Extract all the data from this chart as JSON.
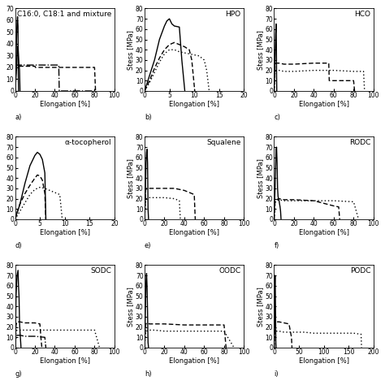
{
  "panels": [
    {
      "label": "a)",
      "title": "C16:0, C18:1 and mixture",
      "xlabel": "Elongation [%]",
      "ylabel": "",
      "xlim": [
        0,
        100
      ],
      "ylim": [
        0,
        70
      ],
      "xticks": [
        0,
        20,
        40,
        60,
        80,
        100
      ],
      "yticks": [
        0,
        10,
        20,
        30,
        40,
        50,
        60,
        70
      ],
      "curves": [
        {
          "style": "solid",
          "x": [
            0,
            0.5,
            1,
            1.5,
            2,
            2.5,
            3,
            3.2,
            3.5
          ],
          "y": [
            0,
            10,
            25,
            45,
            58,
            63,
            55,
            20,
            0
          ]
        },
        {
          "style": "solid",
          "x": [
            0,
            0.5,
            1,
            1.5,
            2,
            2.5,
            3,
            3.5,
            4,
            4.5,
            5
          ],
          "y": [
            0,
            5,
            12,
            20,
            28,
            35,
            38,
            30,
            22,
            18,
            0
          ]
        },
        {
          "style": "dashed",
          "x": [
            0,
            1,
            2,
            5,
            10,
            20,
            20.5,
            40,
            41,
            80,
            81
          ],
          "y": [
            0,
            20,
            21,
            21,
            21,
            21,
            20,
            20,
            20,
            20,
            0
          ]
        },
        {
          "style": "dashdot",
          "x": [
            0,
            1,
            2,
            5,
            10,
            44,
            44.5,
            80,
            81
          ],
          "y": [
            0,
            21,
            22,
            22,
            22,
            22,
            0,
            0,
            0
          ]
        }
      ]
    },
    {
      "label": "b)",
      "title": "HPO",
      "xlabel": "Elongation [%]",
      "ylabel": "Stess [MPa]",
      "xlim": [
        0,
        20
      ],
      "ylim": [
        0,
        80
      ],
      "xticks": [
        0,
        5,
        10,
        15,
        20
      ],
      "yticks": [
        0,
        10,
        20,
        30,
        40,
        50,
        60,
        70,
        80
      ],
      "curves": [
        {
          "style": "solid",
          "x": [
            0,
            1,
            2,
            3,
            4,
            4.5,
            5,
            5.5,
            6,
            7,
            7.5,
            8,
            8.1
          ],
          "y": [
            0,
            15,
            30,
            50,
            63,
            68,
            70,
            65,
            63,
            62,
            30,
            5,
            0
          ]
        },
        {
          "style": "dashed",
          "x": [
            0,
            1,
            2,
            3,
            4,
            5,
            6,
            7,
            8,
            9,
            9.5,
            10,
            10.1
          ],
          "y": [
            0,
            10,
            22,
            32,
            40,
            45,
            47,
            45,
            43,
            40,
            30,
            5,
            0
          ]
        },
        {
          "style": "dotted",
          "x": [
            0,
            1,
            2,
            3,
            4,
            5,
            6,
            7,
            8,
            9,
            10,
            11,
            12,
            12.5,
            13
          ],
          "y": [
            0,
            8,
            18,
            28,
            36,
            40,
            40,
            38,
            37,
            36,
            35,
            34,
            30,
            20,
            0
          ]
        }
      ]
    },
    {
      "label": "c)",
      "title": "HCO",
      "xlabel": "Elongation [%]",
      "ylabel": "Stess [MPa]",
      "xlim": [
        0,
        100
      ],
      "ylim": [
        0,
        80
      ],
      "xticks": [
        0,
        20,
        40,
        60,
        80,
        100
      ],
      "yticks": [
        0,
        10,
        20,
        30,
        40,
        50,
        60,
        70,
        80
      ],
      "curves": [
        {
          "style": "solid",
          "x": [
            0,
            0.5,
            1,
            1.5,
            2,
            2.3,
            2.5,
            2.7
          ],
          "y": [
            0,
            15,
            35,
            55,
            65,
            45,
            15,
            0
          ]
        },
        {
          "style": "dashed",
          "x": [
            0,
            1,
            2,
            5,
            10,
            20,
            40,
            55,
            55.5,
            80,
            81
          ],
          "y": [
            0,
            25,
            27,
            27,
            26,
            26,
            27,
            27,
            10,
            10,
            0
          ]
        },
        {
          "style": "dotted",
          "x": [
            0,
            1,
            2,
            5,
            10,
            20,
            40,
            60,
            80,
            90,
            91
          ],
          "y": [
            0,
            19,
            20,
            20,
            19,
            19,
            20,
            20,
            19,
            19,
            0
          ]
        }
      ]
    },
    {
      "label": "d)",
      "title": "α-tocopherol",
      "xlabel": "Elongation [%]",
      "ylabel": "",
      "xlim": [
        0,
        20
      ],
      "ylim": [
        0,
        80
      ],
      "xticks": [
        0,
        5,
        10,
        15,
        20
      ],
      "yticks": [
        0,
        10,
        20,
        30,
        40,
        50,
        60,
        70,
        80
      ],
      "curves": [
        {
          "style": "solid",
          "x": [
            0,
            1,
            2,
            3,
            4,
            4.5,
            5,
            5.5,
            6,
            6.2
          ],
          "y": [
            0,
            15,
            35,
            52,
            62,
            65,
            63,
            58,
            45,
            0
          ]
        },
        {
          "style": "dashed",
          "x": [
            0,
            0.5,
            1,
            2,
            3,
            4,
            4.5,
            5,
            5.5,
            6,
            6.2
          ],
          "y": [
            0,
            8,
            15,
            25,
            33,
            40,
            43,
            42,
            38,
            25,
            0
          ]
        },
        {
          "style": "dotted",
          "x": [
            0,
            1,
            2,
            3,
            4,
            5,
            6,
            7,
            8,
            9,
            9.5
          ],
          "y": [
            0,
            8,
            16,
            24,
            29,
            31,
            30,
            28,
            26,
            24,
            0
          ]
        }
      ]
    },
    {
      "label": "e)",
      "title": "Squalene",
      "xlabel": "Elongation [%]",
      "ylabel": "Stess [MPa]",
      "xlim": [
        0,
        100
      ],
      "ylim": [
        0,
        80
      ],
      "xticks": [
        0,
        20,
        40,
        60,
        80,
        100
      ],
      "yticks": [
        0,
        10,
        20,
        30,
        40,
        50,
        60,
        70,
        80
      ],
      "curves": [
        {
          "style": "solid",
          "x": [
            0,
            0.5,
            1,
            1.5,
            2,
            2.5,
            3,
            3.3,
            3.5,
            4
          ],
          "y": [
            0,
            15,
            35,
            55,
            65,
            68,
            55,
            30,
            10,
            0
          ]
        },
        {
          "style": "dashed",
          "x": [
            0,
            1,
            2,
            5,
            10,
            30,
            40,
            45,
            50,
            51
          ],
          "y": [
            0,
            28,
            30,
            30,
            30,
            30,
            28,
            26,
            24,
            0
          ]
        },
        {
          "style": "dotted",
          "x": [
            0,
            1,
            2,
            5,
            10,
            20,
            30,
            35,
            36
          ],
          "y": [
            0,
            18,
            20,
            21,
            21,
            21,
            20,
            18,
            0
          ]
        }
      ]
    },
    {
      "label": "f)",
      "title": "RODC",
      "xlabel": "Elongation [%]",
      "ylabel": "Stess [MPa]",
      "xlim": [
        0,
        100
      ],
      "ylim": [
        0,
        80
      ],
      "xticks": [
        0,
        20,
        40,
        60,
        80,
        100
      ],
      "yticks": [
        0,
        10,
        20,
        30,
        40,
        50,
        60,
        70,
        80
      ],
      "curves": [
        {
          "style": "solid",
          "x": [
            0,
            0.5,
            1,
            1.5,
            2,
            2.5,
            3,
            3.5,
            4,
            5,
            5.5,
            6,
            6.5,
            7
          ],
          "y": [
            0,
            15,
            30,
            50,
            68,
            70,
            55,
            30,
            22,
            18,
            15,
            12,
            8,
            0
          ]
        },
        {
          "style": "dashed",
          "x": [
            0,
            1,
            2,
            5,
            10,
            20,
            40,
            60,
            65,
            66
          ],
          "y": [
            0,
            17,
            19,
            20,
            19,
            19,
            18,
            13,
            12,
            0
          ]
        },
        {
          "style": "dotted",
          "x": [
            0,
            1,
            2,
            5,
            10,
            20,
            40,
            60,
            80,
            85
          ],
          "y": [
            0,
            16,
            18,
            19,
            18,
            18,
            18,
            18,
            17,
            0
          ]
        }
      ]
    },
    {
      "label": "g)",
      "title": "SODC",
      "xlabel": "Elongation [%]",
      "ylabel": "",
      "xlim": [
        0,
        100
      ],
      "ylim": [
        0,
        80
      ],
      "xticks": [
        0,
        20,
        40,
        60,
        80,
        100
      ],
      "yticks": [
        0,
        10,
        20,
        30,
        40,
        50,
        60,
        70,
        80
      ],
      "curves": [
        {
          "style": "solid",
          "x": [
            0,
            0.5,
            1,
            2,
            3,
            3.5,
            4,
            4.5,
            5,
            5.5,
            6
          ],
          "y": [
            0,
            20,
            50,
            70,
            75,
            60,
            50,
            25,
            15,
            8,
            0
          ]
        },
        {
          "style": "dashed",
          "x": [
            0,
            1,
            2,
            5,
            10,
            20,
            25,
            26,
            27
          ],
          "y": [
            0,
            22,
            25,
            25,
            24,
            24,
            23,
            10,
            0
          ]
        },
        {
          "style": "dotted",
          "x": [
            0,
            1,
            2,
            5,
            10,
            20,
            40,
            60,
            80,
            85
          ],
          "y": [
            0,
            15,
            17,
            17,
            17,
            17,
            17,
            17,
            17,
            0
          ]
        },
        {
          "style": "dashdot",
          "x": [
            0,
            1,
            2,
            5,
            10,
            20,
            30,
            31
          ],
          "y": [
            0,
            10,
            12,
            12,
            11,
            11,
            10,
            0
          ]
        }
      ]
    },
    {
      "label": "h)",
      "title": "OODC",
      "xlabel": "Elongation [%]",
      "ylabel": "Stess [MPa]",
      "xlim": [
        0,
        100
      ],
      "ylim": [
        0,
        80
      ],
      "xticks": [
        0,
        20,
        40,
        60,
        80,
        100
      ],
      "yticks": [
        0,
        10,
        20,
        30,
        40,
        50,
        60,
        70,
        80
      ],
      "curves": [
        {
          "style": "solid",
          "x": [
            0,
            0.5,
            1,
            1.5,
            2,
            2.5,
            3,
            3.3,
            3.5,
            4
          ],
          "y": [
            0,
            20,
            45,
            65,
            72,
            60,
            35,
            15,
            5,
            0
          ]
        },
        {
          "style": "dashed",
          "x": [
            0,
            1,
            2,
            5,
            10,
            20,
            40,
            60,
            80,
            82
          ],
          "y": [
            0,
            22,
            24,
            23,
            23,
            23,
            22,
            22,
            22,
            0
          ]
        },
        {
          "style": "dotted",
          "x": [
            0,
            1,
            2,
            5,
            10,
            20,
            40,
            60,
            80,
            90
          ],
          "y": [
            0,
            15,
            16,
            17,
            17,
            16,
            16,
            16,
            16,
            0
          ]
        }
      ]
    },
    {
      "label": "i)",
      "title": "PODC",
      "xlabel": "Elongation [%]",
      "ylabel": "Stess [MPa]",
      "xlim": [
        0,
        200
      ],
      "ylim": [
        0,
        80
      ],
      "xticks": [
        0,
        50,
        100,
        150,
        200
      ],
      "yticks": [
        0,
        10,
        20,
        30,
        40,
        50,
        60,
        70,
        80
      ],
      "curves": [
        {
          "style": "solid",
          "x": [
            0,
            0.5,
            1,
            1.5,
            2,
            2.5,
            3,
            3.3,
            3.5,
            4
          ],
          "y": [
            0,
            18,
            38,
            60,
            70,
            55,
            30,
            15,
            5,
            0
          ]
        },
        {
          "style": "dashed",
          "x": [
            0,
            1,
            2,
            5,
            10,
            20,
            30,
            35,
            36
          ],
          "y": [
            0,
            22,
            24,
            25,
            25,
            24,
            23,
            10,
            0
          ]
        },
        {
          "style": "dotted",
          "x": [
            0,
            1,
            2,
            5,
            10,
            20,
            40,
            60,
            80,
            100,
            120,
            140,
            160,
            175,
            176
          ],
          "y": [
            0,
            13,
            15,
            16,
            16,
            15,
            15,
            15,
            14,
            14,
            14,
            14,
            14,
            13,
            0
          ]
        }
      ]
    }
  ],
  "linewidth": 1.0,
  "fontsize_title": 6.5,
  "fontsize_label": 6,
  "fontsize_tick": 5.5,
  "bg_color": "#ffffff"
}
